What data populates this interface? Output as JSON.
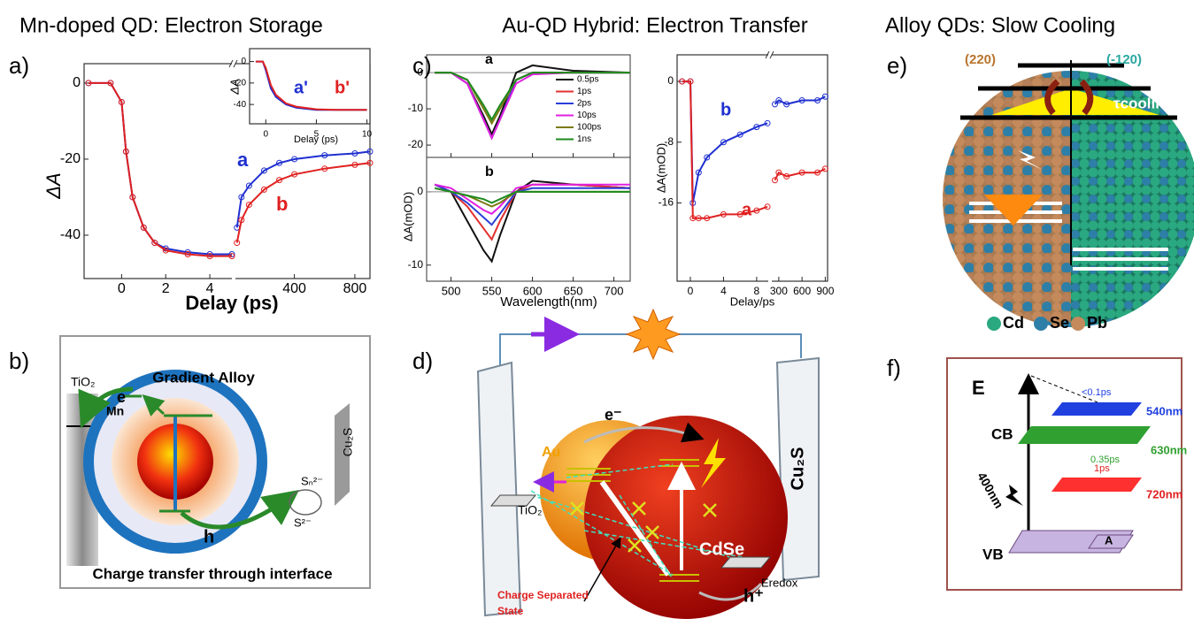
{
  "headers": [
    "Mn-doped QD: Electron Storage",
    "Au-QD Hybrid: Electron Transfer",
    "Alloy QDs: Slow Cooling"
  ],
  "panel_a": {
    "label": "a)",
    "ylabel": "ΔA",
    "xlabel": "Delay (ps)",
    "ylim": [
      -51.4,
      5.1
    ],
    "yticks": [
      0,
      -20,
      -40
    ],
    "series": [
      {
        "name": "a",
        "color": "#1f2fd0"
      },
      {
        "name": "b",
        "color": "#e02020"
      }
    ],
    "segments": [
      {
        "xlim": [
          -1.7,
          5
        ],
        "xticks": [
          0,
          2,
          4
        ],
        "x": [
          -1.5,
          -0.5,
          0,
          0.2,
          0.5,
          1,
          1.5,
          2,
          3,
          4,
          5
        ],
        "values": [
          [
            0,
            0,
            -5,
            -18,
            -30,
            -38,
            -42,
            -43.5,
            -44.5,
            -45,
            -45
          ],
          [
            0,
            0,
            -5,
            -18,
            -30,
            -38,
            -42,
            -44,
            -45,
            -45.5,
            -45.5
          ]
        ]
      },
      {
        "xlim": [
          10,
          900
        ],
        "xticks": [
          400,
          800
        ],
        "x": [
          20,
          50,
          100,
          200,
          300,
          400,
          600,
          800,
          900
        ],
        "values": [
          [
            -38,
            -30,
            -27,
            -23,
            -21,
            -20,
            -19,
            -18.5,
            -18
          ],
          [
            -42,
            -36,
            -32,
            -28,
            -25.5,
            -24,
            -22.5,
            -21.5,
            -21
          ]
        ]
      }
    ],
    "inset": {
      "ylabel": "ΔA",
      "xlabel": "Delay (ps)",
      "ylim": [
        -58,
        12
      ],
      "yticks": [
        0,
        -20,
        -40
      ],
      "series": [
        {
          "name": "a'",
          "color": "#1f2fd0"
        },
        {
          "name": "b'",
          "color": "#e02020"
        }
      ],
      "xlim": [
        -1.6,
        10.3
      ],
      "xticks": [
        0,
        5,
        10
      ],
      "x": [
        -1,
        -0.3,
        0,
        0.5,
        1,
        2,
        3,
        5,
        7,
        10
      ],
      "values": [
        [
          0,
          0,
          -8,
          -25,
          -33,
          -40,
          -43,
          -45,
          -45,
          -45
        ],
        [
          0,
          0,
          -6,
          -22,
          -31,
          -39,
          -42,
          -44.5,
          -45,
          -45
        ]
      ]
    }
  },
  "panel_b": {
    "label": "b)",
    "title": "Gradient Alloy",
    "tio2": "TiO₂",
    "e": "e",
    "mn": "Mn",
    "h": "h",
    "sn": "Sₙ²⁻",
    "s2": "S²⁻",
    "cu2s": "Cu₂S",
    "caption": "Charge transfer through interface"
  },
  "panel_c": {
    "label": "c)",
    "spectra": {
      "ylabel": "ΔA(mOD)",
      "xlabel": "Wavelength(nm)",
      "xlim": [
        470,
        720
      ],
      "xticks": [
        500,
        550,
        600,
        650,
        700
      ],
      "x": [
        480,
        500,
        520,
        540,
        550,
        560,
        580,
        600,
        650,
        720
      ],
      "series": [
        {
          "name": "0.5ps",
          "color": "#111111"
        },
        {
          "name": "1ps",
          "color": "#e23030"
        },
        {
          "name": "2ps",
          "color": "#2a3fd8"
        },
        {
          "name": "10ps",
          "color": "#e020e0"
        },
        {
          "name": "100ps",
          "color": "#7a7a10"
        },
        {
          "name": "1ns",
          "color": "#1e8a1e"
        }
      ],
      "top": {
        "label": "a",
        "ylim": [
          -23.4,
          4.9
        ],
        "yticks": [
          0,
          -10,
          -20
        ],
        "values": [
          [
            0,
            0,
            -3,
            -12,
            -17,
            -12,
            0,
            2,
            0.5,
            0
          ],
          [
            0,
            0,
            -3,
            -13,
            -18,
            -13,
            -2,
            0,
            0,
            0
          ],
          [
            0,
            0,
            -3,
            -13,
            -18,
            -13,
            -2,
            0,
            0,
            0
          ],
          [
            0,
            0,
            -3,
            -13,
            -18,
            -13,
            -3,
            -0.5,
            0,
            0
          ],
          [
            0,
            0,
            -2,
            -10,
            -14,
            -10,
            -2,
            0,
            0,
            0
          ],
          [
            0,
            0,
            -2,
            -9,
            -13,
            -9,
            -2,
            0,
            0,
            0
          ]
        ]
      },
      "bottom": {
        "label": "b",
        "ylim": [
          -12.2,
          4.7
        ],
        "yticks": [
          0,
          -10
        ],
        "values": [
          [
            1,
            0,
            -4,
            -8,
            -9.5,
            -6,
            0,
            1.5,
            1,
            0.5
          ],
          [
            1,
            0,
            -2,
            -5,
            -6.5,
            -4,
            0,
            1,
            1,
            0.5
          ],
          [
            1,
            0,
            -1.5,
            -3.5,
            -4.5,
            -3,
            0,
            0.5,
            0.5,
            0.5
          ],
          [
            1,
            0.5,
            -1,
            -2.5,
            -3,
            -2,
            0.5,
            1,
            1,
            1
          ],
          [
            0.5,
            0,
            -0.5,
            -1.5,
            -2,
            -1.5,
            0,
            0,
            0,
            0
          ],
          [
            0.5,
            0,
            -0.5,
            -1,
            -1.5,
            -1,
            0,
            0,
            0,
            0
          ]
        ]
      }
    },
    "kinetics": {
      "ylabel": "ΔA(mOD)",
      "xlabel": "Delay/ps",
      "ylim": [
        -26.3,
        3.5
      ],
      "yticks": [
        0,
        -8,
        -16
      ],
      "series": [
        {
          "name": "b",
          "color": "#1f2fd0"
        },
        {
          "name": "a",
          "color": "#e02020"
        }
      ],
      "segments": [
        {
          "xlim": [
            -1.6,
            9.4
          ],
          "xticks": [
            0,
            4,
            8
          ],
          "x": [
            -1,
            0,
            0.3,
            1,
            2,
            4,
            6,
            8,
            9.3
          ],
          "values": [
            [
              0,
              0,
              -16,
              -12,
              -10,
              -8,
              -7,
              -6,
              -5.5
            ],
            [
              0,
              0,
              -18,
              -18,
              -18,
              -17.5,
              -17.5,
              -17,
              -16.5
            ]
          ]
        },
        {
          "xlim": [
            210,
            930
          ],
          "xticks": [
            300,
            600,
            900
          ],
          "x": [
            250,
            300,
            400,
            600,
            800,
            900
          ],
          "values": [
            [
              -3,
              -2.5,
              -3,
              -2.5,
              -2.5,
              -2
            ],
            [
              -13,
              -12,
              -12.5,
              -12,
              -12,
              -11.5
            ]
          ]
        }
      ]
    }
  },
  "panel_d": {
    "label": "d)",
    "e": "e⁻",
    "au": "Au",
    "tio2": "TiO₂",
    "cdse": "CdSe",
    "eredox": "Eredox",
    "h": "h⁺",
    "cs": [
      "Charge Separated",
      "State"
    ],
    "cu2s": "Cu₂S"
  },
  "panel_e": {
    "label": "e)",
    "p220": "(220)",
    "p120": "(-120)",
    "tau": "τcooling",
    "legend": [
      "Cd",
      "Se",
      "Pb"
    ]
  },
  "panel_f": {
    "label": "f)",
    "E": "E",
    "t1": "<0.1ps",
    "l1": "540nm",
    "cb": "CB",
    "t2": "0.35ps",
    "l2": "630nm",
    "t3": "1ps",
    "l3": "720nm",
    "pump": "400nm",
    "vb": "VB",
    "A": "A"
  }
}
